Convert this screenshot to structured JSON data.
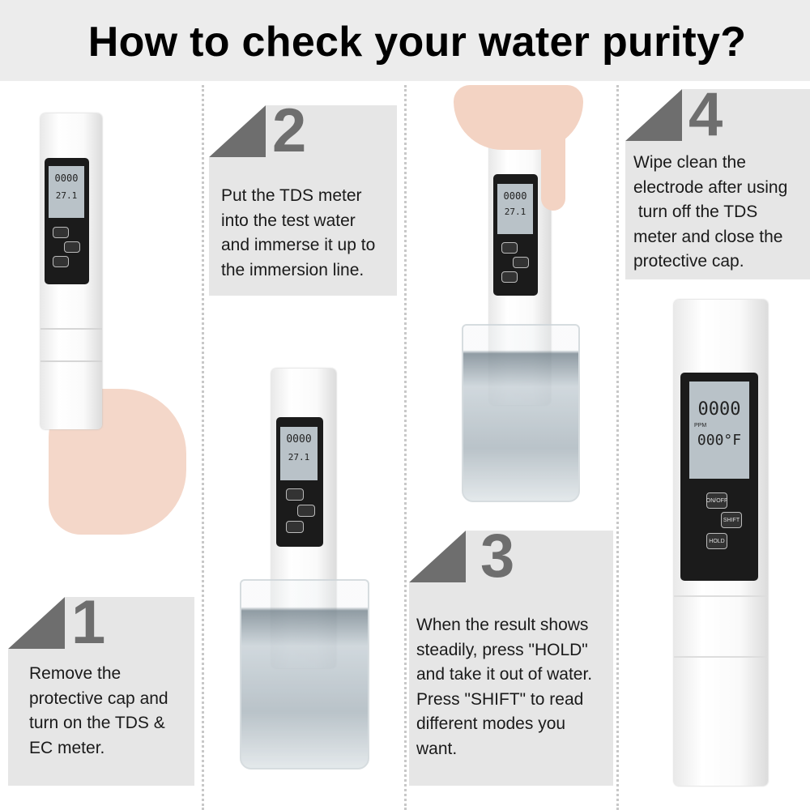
{
  "title": "How to check your water purity?",
  "steps": [
    {
      "number": "1",
      "lines": [
        "Remove the",
        "protective cap and",
        "turn on the TDS &",
        "EC meter."
      ]
    },
    {
      "number": "2",
      "lines": [
        "Put the TDS meter",
        "into the test water",
        "and immerse it up to",
        "the immersion line."
      ]
    },
    {
      "number": "3",
      "lines": [
        "When the result shows",
        "steadily, press \"HOLD\"",
        "and take it out of water.",
        "Press \"SHIFT\" to read",
        "different modes you",
        "want."
      ]
    },
    {
      "number": "4",
      "lines": [
        "Wipe clean the",
        "electrode after using",
        " turn off the TDS",
        "meter and close the",
        "protective cap."
      ]
    }
  ],
  "meter": {
    "reading": "0000",
    "unit": "PPM",
    "temp_small": "27.1",
    "temp_large": "000°F",
    "buttons": [
      "ON/OFF",
      "SHIFT",
      "HOLD"
    ]
  },
  "colors": {
    "band": "#ececec",
    "box": "#e6e6e6",
    "accent": "#6e6e6e"
  }
}
